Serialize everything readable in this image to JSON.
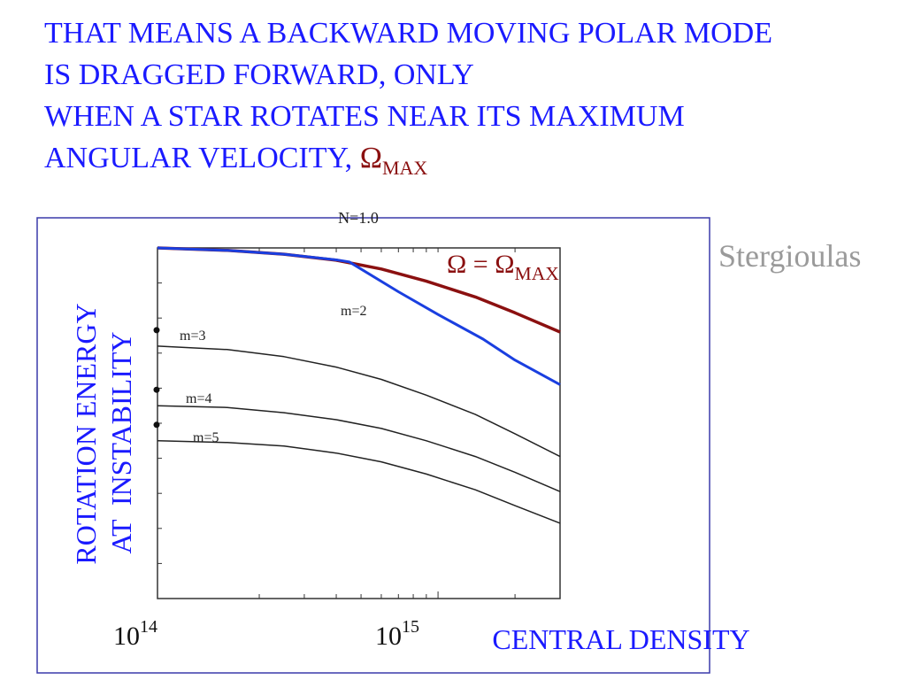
{
  "heading": {
    "line1": "THAT MEANS A BACKWARD MOVING POLAR MODE",
    "line2": "IS DRAGGED FORWARD, ONLY",
    "line3": "WHEN A STAR ROTATES NEAR ITS MAXIMUM",
    "line4_text": "ANGULAR VELOCITY, ",
    "line4_symbol": "Ω",
    "line4_subscript": "MAX"
  },
  "attribution": "Stergioulas",
  "colors": {
    "heading": "#1a1aff",
    "omega_max_curve": "#8b1010",
    "m2_curve": "#1a3fe0",
    "other_curves": "#222222",
    "frame": "#3a3aaa"
  },
  "chart_data": {
    "type": "line",
    "title": "N=1.0",
    "xlabel": "CENTRAL DENSITY",
    "ylabel_line1": "ROTATION ENERGY",
    "ylabel_line2": "AT  INSTABILITY",
    "x_scale": "log",
    "xlim": [
      80000000000000.0,
      3000000000000000.0
    ],
    "ylim": [
      0,
      1
    ],
    "xticks": [
      {
        "label_base": "10",
        "label_exp": "14",
        "value": 100000000000000.0
      },
      {
        "label_base": "10",
        "label_exp": "15",
        "value": 1000000000000000.0
      }
    ],
    "series": [
      {
        "name": "Ω = Ω",
        "name_sub": "MAX",
        "color": "#8b1010",
        "x": [
          80000000000000.0,
          150000000000000.0,
          250000000000000.0,
          400000000000000.0,
          600000000000000.0,
          900000000000000.0,
          1400000000000000.0,
          2000000000000000.0,
          3000000000000000.0
        ],
        "y": [
          1.0,
          0.993,
          0.982,
          0.965,
          0.94,
          0.905,
          0.86,
          0.815,
          0.76
        ]
      },
      {
        "name": "m=2",
        "color": "#1a3fe0",
        "x": [
          80000000000000.0,
          150000000000000.0,
          250000000000000.0,
          400000000000000.0,
          450000000000000.0,
          700000000000000.0,
          1000000000000000.0,
          1500000000000000.0,
          2000000000000000.0,
          3000000000000000.0
        ],
        "y": [
          1.0,
          0.993,
          0.982,
          0.966,
          0.96,
          0.875,
          0.81,
          0.74,
          0.68,
          0.61
        ]
      },
      {
        "name": "m=3",
        "color": "#222222",
        "x": [
          80000000000000.0,
          150000000000000.0,
          250000000000000.0,
          400000000000000.0,
          600000000000000.0,
          900000000000000.0,
          1400000000000000.0,
          2000000000000000.0,
          3000000000000000.0
        ],
        "y": [
          0.72,
          0.71,
          0.69,
          0.66,
          0.625,
          0.58,
          0.525,
          0.47,
          0.405
        ]
      },
      {
        "name": "m=4",
        "color": "#222222",
        "x": [
          80000000000000.0,
          150000000000000.0,
          250000000000000.0,
          400000000000000.0,
          600000000000000.0,
          900000000000000.0,
          1400000000000000.0,
          2000000000000000.0,
          3000000000000000.0
        ],
        "y": [
          0.55,
          0.545,
          0.53,
          0.51,
          0.485,
          0.45,
          0.405,
          0.36,
          0.305
        ]
      },
      {
        "name": "m=5",
        "color": "#222222",
        "x": [
          80000000000000.0,
          150000000000000.0,
          250000000000000.0,
          400000000000000.0,
          600000000000000.0,
          900000000000000.0,
          1400000000000000.0,
          2000000000000000.0,
          3000000000000000.0
        ],
        "y": [
          0.45,
          0.445,
          0.435,
          0.415,
          0.39,
          0.355,
          0.31,
          0.265,
          0.215
        ]
      }
    ],
    "grid": false,
    "legend": "none"
  }
}
